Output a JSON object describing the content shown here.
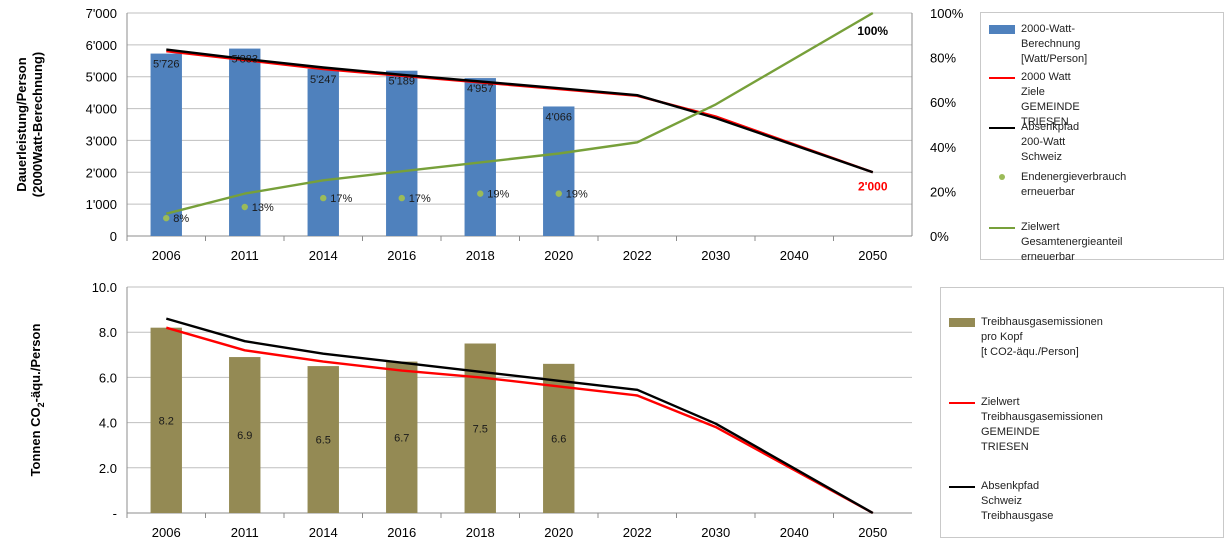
{
  "chart_data": [
    {
      "type": "bar",
      "categories": [
        "2006",
        "2011",
        "2014",
        "2016",
        "2018",
        "2020",
        "2022",
        "2030",
        "2040",
        "2050"
      ],
      "ylabel": "Dauerleistung/Person\n(2000Watt-Berechnung)",
      "ylim": [
        0,
        7000
      ],
      "y_ticks": [
        "0",
        "1'000",
        "2'000",
        "3'000",
        "4'000",
        "5'000",
        "6'000",
        "7'000"
      ],
      "y2lim": [
        0,
        100
      ],
      "y2_ticks": [
        "0%",
        "20%",
        "40%",
        "60%",
        "80%",
        "100%"
      ],
      "grid": true,
      "legend": "right",
      "series": [
        {
          "name": "2000-Watt-Berechnung\n[Watt/Person]",
          "kind": "bar",
          "axis": "left",
          "color": "#4f81bd",
          "values": [
            5726,
            5883,
            5247,
            5189,
            4957,
            4066,
            null,
            null,
            null,
            null
          ],
          "labels": [
            "5'726",
            "5'883",
            "5'247",
            "5'189",
            "4'957",
            "4'066",
            "",
            "",
            "",
            ""
          ]
        },
        {
          "name": "2000 Watt Ziele GEMEINDE TRIESEN",
          "kind": "line",
          "axis": "left",
          "color": "#ff0000",
          "values": [
            5800,
            5520,
            5240,
            5030,
            4820,
            4610,
            4400,
            3750,
            null,
            2000
          ]
        },
        {
          "name": "Absenkpfad 200-Watt Schweiz",
          "kind": "line",
          "axis": "left",
          "color": "#000000",
          "values": [
            5850,
            5560,
            5290,
            5060,
            4850,
            4640,
            4420,
            3700,
            null,
            2000
          ],
          "end_label": "2'000",
          "end_label_color": "#ff0000"
        },
        {
          "name": "Endenergieverbrauch erneuerbar",
          "kind": "scatter",
          "axis": "right",
          "color": "#9bbb59",
          "values": [
            8,
            13,
            17,
            17,
            19,
            19,
            null,
            null,
            null,
            null
          ],
          "labels": [
            "8%",
            "13%",
            "17%",
            "17%",
            "19%",
            "19%",
            "",
            "",
            "",
            ""
          ]
        },
        {
          "name": "Zielwert Gesamtenergieanteil\nerneuerbar",
          "kind": "line",
          "axis": "right",
          "color": "#77a03a",
          "values": [
            10,
            19,
            25,
            29,
            33,
            37,
            42,
            59,
            null,
            100
          ],
          "end_label": "100%",
          "end_label_color": "#000000"
        }
      ]
    },
    {
      "type": "bar",
      "categories": [
        "2006",
        "2011",
        "2014",
        "2016",
        "2018",
        "2020",
        "2022",
        "2030",
        "2040",
        "2050"
      ],
      "ylabel_main": "Tonnen CO",
      "ylabel_sub": "2",
      "ylabel_rest": "-äqu./Person",
      "ylim": [
        0,
        10
      ],
      "y_ticks": [
        "-",
        "2.0",
        "4.0",
        "6.0",
        "8.0",
        "10.0"
      ],
      "grid": true,
      "legend": "right",
      "series": [
        {
          "name": "Treibhausgasemissionen pro Kopf\n[t CO2-äqu./Person]",
          "kind": "bar",
          "color": "#948a54",
          "values": [
            8.2,
            6.9,
            6.5,
            6.7,
            7.5,
            6.6,
            null,
            null,
            null,
            null
          ],
          "labels": [
            "8.2",
            "6.9",
            "6.5",
            "6.7",
            "7.5",
            "6.6",
            "",
            "",
            "",
            ""
          ]
        },
        {
          "name": "Zielwert Treibhausgasemissionen GEMEINDE\nTRIESEN",
          "kind": "line",
          "color": "#ff0000",
          "values": [
            8.2,
            7.2,
            6.7,
            6.3,
            6.0,
            5.6,
            5.2,
            3.8,
            null,
            0
          ]
        },
        {
          "name": "Absenkpfad Schweiz Treibhausgase",
          "kind": "line",
          "color": "#000000",
          "values": [
            8.6,
            7.6,
            7.05,
            6.65,
            6.25,
            5.85,
            5.45,
            3.95,
            null,
            0
          ]
        }
      ]
    }
  ]
}
